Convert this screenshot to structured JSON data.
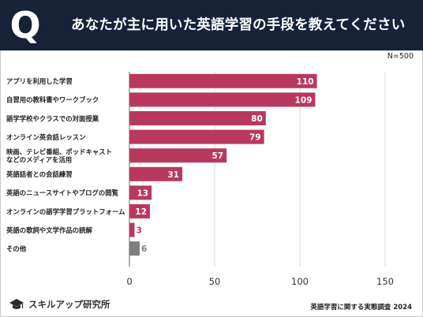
{
  "header": {
    "badge": "Q",
    "title": "あなたが主に用いた英語学習の手段を教えてください"
  },
  "sample_size": "N=500",
  "footer": {
    "logo_name": "スキルアップ研究所",
    "source": "英語学習に関する実態調査 2024"
  },
  "colors": {
    "header_bg": "#172238",
    "bar": "#b8385e",
    "bar_other": "#7f7f7f"
  },
  "chart_data": {
    "type": "bar",
    "orientation": "horizontal",
    "categories": [
      "アプリを利用した学習",
      "自習用の教科書やワークブック",
      "語学学校やクラスでの対面授業",
      "オンライン英会話レッスン",
      "映画、テレビ番組、ポッドキャストなどのメディアを活用",
      "英語話者との会話練習",
      "英語のニュースサイトやブログの閲覧",
      "オンラインの語学学習プラットフォーム",
      "英語の歌詞や文学作品の読解",
      "その他"
    ],
    "category_lines": [
      [
        "アプリを利用した学習"
      ],
      [
        "自習用の教科書やワークブック"
      ],
      [
        "語学学校やクラスでの対面授業"
      ],
      [
        "オンライン英会話レッスン"
      ],
      [
        "映画、テレビ番組、ポッドキャスト",
        "などのメディアを活用"
      ],
      [
        "英語話者との会話練習"
      ],
      [
        "英語のニュースサイトやブログの閲覧"
      ],
      [
        "オンラインの語学学習プラットフォーム"
      ],
      [
        "英語の歌詞や文学作品の読解"
      ],
      [
        "その他"
      ]
    ],
    "values": [
      110,
      109,
      80,
      79,
      57,
      31,
      13,
      12,
      3,
      6
    ],
    "bar_colors": [
      "#b8385e",
      "#b8385e",
      "#b8385e",
      "#b8385e",
      "#b8385e",
      "#b8385e",
      "#b8385e",
      "#b8385e",
      "#b8385e",
      "#7f7f7f"
    ],
    "xticks": [
      0,
      50,
      100,
      150
    ],
    "xlim": [
      0,
      150
    ],
    "grid": true,
    "legend": "none"
  }
}
